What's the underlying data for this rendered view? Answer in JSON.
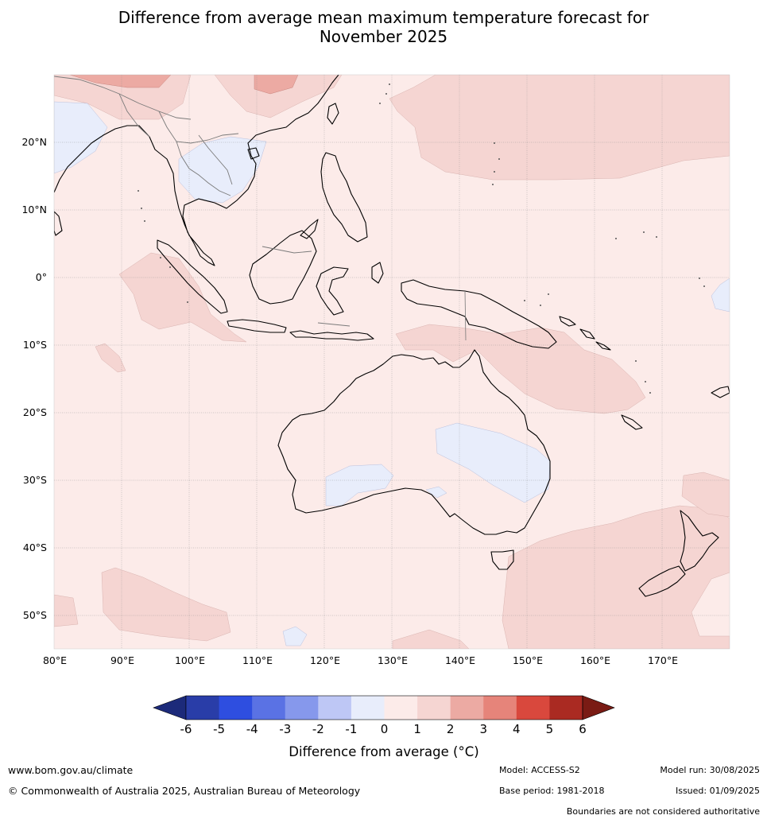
{
  "title": {
    "line1": "Difference from average mean maximum temperature forecast for",
    "line2": "November 2025"
  },
  "map": {
    "lat_labels": [
      "20°N",
      "10°N",
      "0°",
      "10°S",
      "20°S",
      "30°S",
      "40°S",
      "50°S"
    ],
    "lon_labels": [
      "80°E",
      "90°E",
      "100°E",
      "110°E",
      "120°E",
      "130°E",
      "140°E",
      "150°E",
      "160°E",
      "170°E"
    ],
    "extent": {
      "lon": [
        80,
        180
      ],
      "lat": [
        -55,
        30
      ]
    }
  },
  "colorbar": {
    "ticks": [
      "-6",
      "-5",
      "-4",
      "-3",
      "-2",
      "-1",
      "0",
      "1",
      "2",
      "3",
      "4",
      "5",
      "6"
    ],
    "colors": [
      "#293da8",
      "#2e4ee0",
      "#5a72e4",
      "#8698ec",
      "#bec7f5",
      "#e8edfb",
      "#fcebe9",
      "#f5d5d2",
      "#ecaaa3",
      "#e6847a",
      "#d9483d",
      "#aa2a22"
    ],
    "under_color": "#1c2a7a",
    "over_color": "#7a1b14",
    "label": "Difference from average (°C)"
  },
  "footer": {
    "website": "www.bom.gov.au/climate",
    "copyright": "© Commonwealth of Australia 2025, Australian Bureau of Meteorology",
    "model": "Model: ACCESS-S2",
    "base_period": "Base period: 1981-2018",
    "model_run": "Model run: 30/08/2025",
    "issued": "Issued: 01/09/2025",
    "disclaimer": "Boundaries are not considered authoritative"
  }
}
